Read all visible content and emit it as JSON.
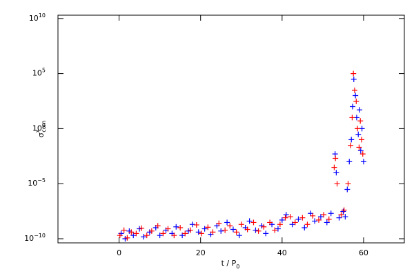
{
  "chart_data": {
    "type": "scatter",
    "x_label": {
      "text": "t / P",
      "sub": "0"
    },
    "y_label": {
      "text": "σ",
      "sup": "x",
      "sub": "com"
    },
    "xlim": [
      -15,
      70
    ],
    "xticks": [
      0,
      20,
      40,
      60
    ],
    "ylim": [
      4.2e-11,
      20000000000.0
    ],
    "log_y": true,
    "yticks": [
      {
        "value": 1e-10,
        "label": "10",
        "exponent": "−10"
      },
      {
        "value": 1e-05,
        "label": "10",
        "exponent": "−5"
      },
      {
        "value": 1,
        "label": "10",
        "exponent": "0"
      },
      {
        "value": 100000,
        "label": "10",
        "exponent": "5"
      },
      {
        "value": 10000000000.0,
        "label": "10",
        "exponent": "10"
      }
    ],
    "series": [
      {
        "color": "#0000ff",
        "x": [
          0.5,
          1.5,
          2.5,
          3.5,
          5,
          6,
          7.5,
          9,
          10,
          11.5,
          13,
          14,
          15.5,
          17,
          18,
          19.5,
          21,
          22.5,
          24,
          25,
          26.5,
          28,
          29.5,
          31,
          32,
          33.5,
          35,
          36,
          37.5,
          39,
          40,
          41,
          42.5,
          44,
          45.5,
          47,
          48,
          49.5,
          51,
          52,
          53,
          53.3,
          54,
          55,
          55.5,
          56,
          56.5,
          57,
          57.3,
          57.6,
          58,
          58.3,
          58.7,
          59,
          59.3,
          59.6,
          60
        ],
        "values": [
          3e-10,
          1e-10,
          5e-10,
          2e-10,
          8e-10,
          1.5e-10,
          4e-10,
          1e-09,
          2e-10,
          6e-10,
          3e-10,
          1.2e-09,
          2e-10,
          5e-10,
          2e-09,
          4e-10,
          8e-10,
          2.5e-10,
          1.5e-09,
          5e-10,
          3e-09,
          7e-10,
          2e-10,
          1e-09,
          4e-09,
          6e-10,
          1.5e-09,
          3e-10,
          2e-09,
          8e-10,
          5e-09,
          1.5e-08,
          2e-09,
          6e-09,
          1e-09,
          2e-08,
          4e-09,
          1e-08,
          3e-09,
          2e-08,
          0.005,
          0.0001,
          8e-09,
          3e-08,
          1e-08,
          3e-06,
          0.001,
          0.1,
          100,
          30000,
          1000,
          10,
          0.3,
          50,
          0.01,
          1,
          0.001
        ]
      },
      {
        "color": "#ff0000",
        "x": [
          0.2,
          1.2,
          2,
          3,
          4.2,
          5.5,
          6.8,
          8,
          9.5,
          10.8,
          12,
          13.5,
          15,
          16.2,
          17.5,
          19,
          20.2,
          21.8,
          23,
          24.5,
          26,
          27.2,
          28.8,
          30,
          31.5,
          33,
          34.2,
          35.5,
          37,
          38.2,
          39.5,
          40.8,
          42,
          43.2,
          45,
          46.2,
          47.5,
          49,
          50.2,
          51.5,
          52.8,
          53.1,
          53.5,
          54.5,
          55.2,
          56.2,
          56.8,
          57.2,
          57.5,
          57.8,
          58.2,
          58.5,
          58.9,
          59.2,
          59.5,
          59.8
        ],
        "values": [
          2e-10,
          6e-10,
          1.2e-10,
          4e-10,
          3e-10,
          9e-10,
          2e-10,
          5e-10,
          1.5e-09,
          3e-10,
          8e-10,
          2e-10,
          1e-09,
          3e-10,
          6e-10,
          1.8e-09,
          3e-10,
          1.1e-09,
          4e-10,
          2.5e-09,
          6e-10,
          1.5e-09,
          4e-10,
          2e-09,
          7e-10,
          3e-09,
          5e-10,
          1.2e-09,
          3e-09,
          6e-10,
          2e-09,
          8e-09,
          1e-08,
          3e-09,
          8e-09,
          2e-09,
          1.2e-08,
          5e-09,
          1.5e-08,
          6e-09,
          0.0003,
          0.002,
          1e-05,
          1.5e-08,
          4e-08,
          1e-05,
          0.03,
          10,
          100000,
          3000,
          300,
          1,
          0.02,
          5,
          0.1,
          0.005
        ]
      }
    ]
  }
}
